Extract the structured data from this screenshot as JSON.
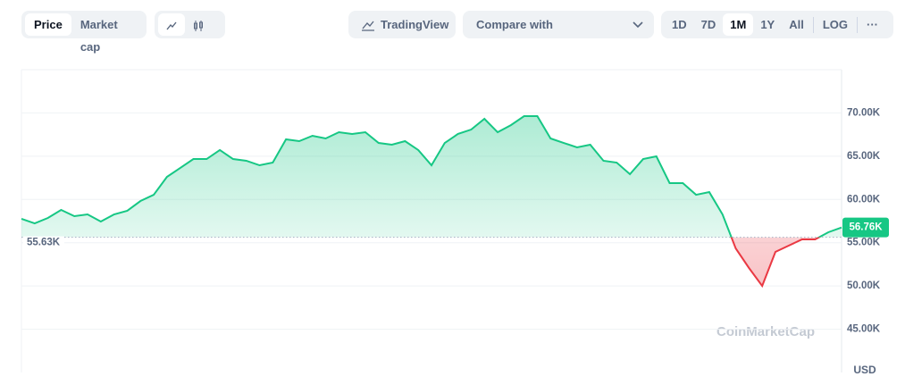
{
  "toolbar": {
    "price": "Price",
    "market_cap": "Market cap",
    "tradingview": "TradingView",
    "compare": "Compare with",
    "ranges": [
      "1D",
      "7D",
      "1M",
      "1Y",
      "All"
    ],
    "log": "LOG",
    "more": "···"
  },
  "watermark": "CoinMarketCap",
  "currency": "USD",
  "chart_data": {
    "type": "line",
    "values": [
      57760,
      57240,
      57860,
      58790,
      58070,
      58270,
      57450,
      58270,
      58690,
      59820,
      60540,
      62610,
      63640,
      64670,
      64670,
      65710,
      64670,
      64470,
      63950,
      64260,
      66950,
      66740,
      67360,
      67050,
      67770,
      67570,
      67770,
      66530,
      66330,
      66740,
      65710,
      63950,
      66530,
      67570,
      68080,
      69320,
      67770,
      68590,
      69630,
      69630,
      67050,
      66530,
      66020,
      66330,
      64470,
      64260,
      62920,
      64670,
      64980,
      61890,
      61890,
      60540,
      60850,
      58270,
      54340,
      52080,
      50010,
      53940,
      54660,
      55380,
      55380,
      56210,
      56760
    ],
    "baseline": {
      "value": 55630,
      "label": "55.63K"
    },
    "current": {
      "value": 56760,
      "label": "56.76K"
    },
    "color_up": "#16c784",
    "color_down": "#ea3943",
    "ylim": [
      40000,
      75000
    ],
    "yticks": [
      {
        "value": 45000,
        "label": "45.00K"
      },
      {
        "value": 50000,
        "label": "50.00K"
      },
      {
        "value": 55000,
        "label": "55.00K"
      },
      {
        "value": 60000,
        "label": "60.00K"
      },
      {
        "value": 65000,
        "label": "65.00K"
      },
      {
        "value": 70000,
        "label": "70.00K"
      }
    ],
    "grid": true
  }
}
